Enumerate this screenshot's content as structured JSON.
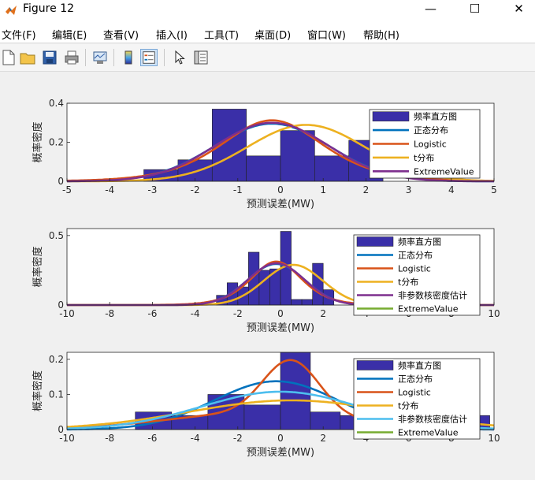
{
  "window": {
    "title": "Figure 12",
    "minimize_glyph": "—",
    "maximize_glyph": "☐",
    "close_glyph": "✕"
  },
  "menu": [
    "文件(F)",
    "编辑(E)",
    "查看(V)",
    "插入(I)",
    "工具(T)",
    "桌面(D)",
    "窗口(W)",
    "帮助(H)"
  ],
  "toolbar": {
    "buttons": [
      "new-figure-icon",
      "open-file-icon",
      "save-icon",
      "print-icon",
      "link-plot-icon",
      "colorbar-icon",
      "legend-icon",
      "pointer-icon",
      "property-inspector-icon"
    ],
    "active": "legend-icon"
  },
  "colors": {
    "hist": "#3a2fa8",
    "normal": "#0072bd",
    "logistic": "#d95319",
    "tdist": "#edb120",
    "kernel": "#7e2f8e",
    "extreme": "#77ac30",
    "extreme2": "#4dbeee"
  },
  "chart_data": [
    {
      "type": "bar",
      "xlabel": "预测误差(MW)",
      "ylabel": "概率密度",
      "xlim": [
        -5,
        5
      ],
      "ylim": [
        0,
        0.4
      ],
      "xticks": [
        -5,
        -4,
        -3,
        -2,
        -1,
        0,
        1,
        2,
        3,
        4,
        5
      ],
      "yticks": [
        0,
        0.2,
        0.4
      ],
      "ytick_labels": [
        "0",
        "0.2",
        "0.4"
      ],
      "legend": [
        "频率直方图",
        "正态分布",
        "Logistic",
        "t分布",
        "ExtremeValue"
      ],
      "legend_position": "top-right",
      "histogram": {
        "edges": [
          -3.2,
          -2.4,
          -1.6,
          -0.8,
          0.0,
          0.8,
          1.6,
          2.4
        ],
        "values": [
          0.06,
          0.11,
          0.37,
          0.13,
          0.26,
          0.13,
          0.21
        ]
      },
      "curves": [
        {
          "name": "正态分布",
          "dist": "normal",
          "mu": -0.2,
          "sigma": 1.35,
          "color": "normal"
        },
        {
          "name": "Logistic",
          "dist": "logistic",
          "mu": -0.2,
          "s": 0.8,
          "color": "logistic"
        },
        {
          "name": "t分布",
          "dist": "normal",
          "mu": 0.6,
          "sigma": 1.38,
          "color": "tdist"
        },
        {
          "name": "ExtremeValue",
          "dist": "normal",
          "mu": -0.2,
          "sigma": 1.33,
          "color": "kernel"
        }
      ]
    },
    {
      "type": "bar",
      "xlabel": "预测误差(MW)",
      "ylabel": "概率密度",
      "xlim": [
        -10,
        10
      ],
      "ylim": [
        0,
        0.55
      ],
      "xticks": [
        -10,
        -8,
        -6,
        -4,
        -2,
        0,
        2,
        4,
        6,
        8,
        10
      ],
      "yticks": [
        0,
        0.5
      ],
      "ytick_labels": [
        "0",
        "0.5"
      ],
      "legend": [
        "频率直方图",
        "正态分布",
        "Logistic",
        "t分布",
        "非参数核密度估计",
        "ExtremeValue"
      ],
      "legend_position": "top-right",
      "histogram": {
        "edges": [
          -3.0,
          -2.5,
          -2.0,
          -1.5,
          -1.0,
          -0.5,
          0.0,
          0.5,
          1.0,
          1.5,
          2.0,
          2.5
        ],
        "values": [
          0.07,
          0.16,
          0.13,
          0.38,
          0.25,
          0.26,
          0.53,
          0.04,
          0.04,
          0.3,
          0.11
        ]
      },
      "curves": [
        {
          "name": "正态分布",
          "dist": "normal",
          "mu": -0.2,
          "sigma": 1.35,
          "color": "normal"
        },
        {
          "name": "Logistic",
          "dist": "logistic",
          "mu": -0.2,
          "s": 0.8,
          "color": "logistic"
        },
        {
          "name": "t分布",
          "dist": "normal",
          "mu": 0.6,
          "sigma": 1.38,
          "color": "tdist"
        },
        {
          "name": "非参数核密度估计",
          "dist": "normal",
          "mu": -0.2,
          "sigma": 1.33,
          "color": "kernel"
        }
      ]
    },
    {
      "type": "bar",
      "xlabel": "预测误差(MW)",
      "ylabel": "概率密度",
      "xlim": [
        -10,
        10
      ],
      "ylim": [
        0,
        0.22
      ],
      "xticks": [
        -10,
        -8,
        -6,
        -4,
        -2,
        0,
        2,
        4,
        6,
        8,
        10
      ],
      "yticks": [
        0,
        0.1,
        0.2
      ],
      "ytick_labels": [
        "0",
        "0.1",
        "0.2"
      ],
      "legend": [
        "频率直方图",
        "正态分布",
        "Logistic",
        "t分布",
        "非参数核密度估计",
        "ExtremeValue"
      ],
      "legend_position": "top-right",
      "histogram": {
        "edges": [
          -6.8,
          -5.1,
          -3.4,
          -1.7,
          0.0,
          1.4,
          2.8,
          4.2,
          5.6,
          7.0,
          8.4,
          9.8
        ],
        "values": [
          0.05,
          0.04,
          0.1,
          0.07,
          0.22,
          0.05,
          0.04,
          0.02,
          0.01,
          0.01,
          0.04
        ]
      },
      "curves": [
        {
          "name": "正态分布",
          "dist": "normal",
          "mu": -0.2,
          "sigma": 2.9,
          "color": "normal"
        },
        {
          "name": "Logistic",
          "dist": "mix",
          "color": "logistic"
        },
        {
          "name": "t分布",
          "dist": "normal",
          "mu": 0.5,
          "sigma": 4.8,
          "color": "tdist"
        },
        {
          "name": "ExtremeValue",
          "dist": "normal",
          "mu": 0.0,
          "sigma": 3.7,
          "color": "extreme2"
        }
      ]
    }
  ]
}
